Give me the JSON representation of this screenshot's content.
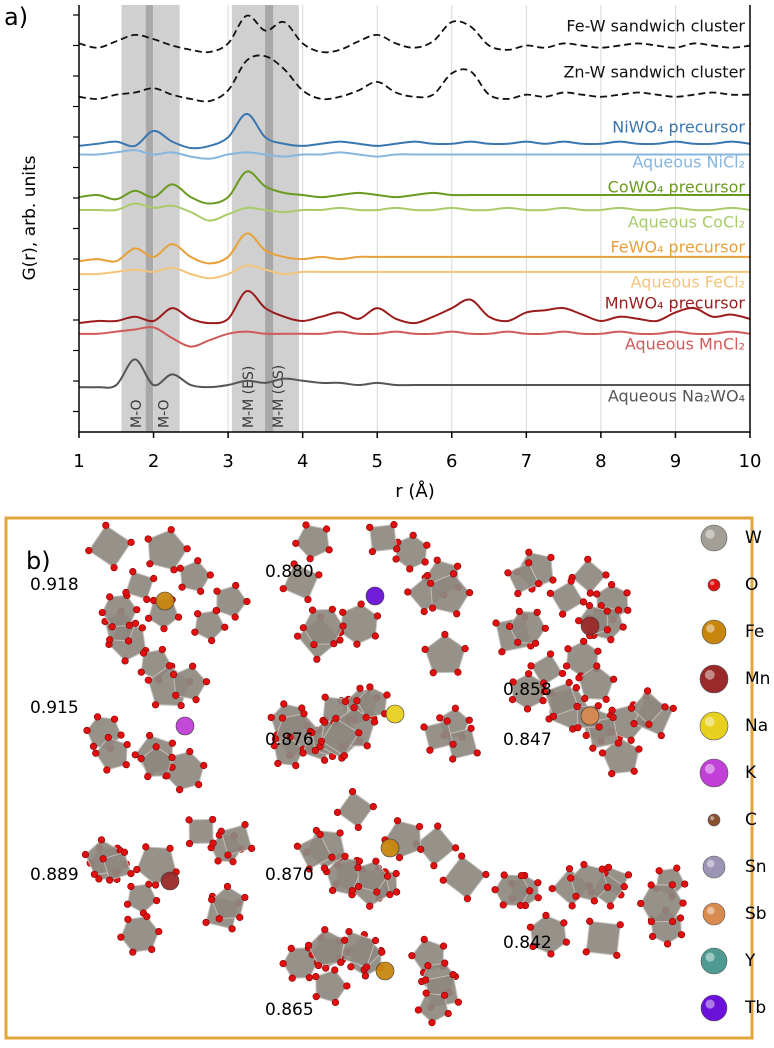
{
  "chart_data": {
    "type": "line",
    "panel_label": "a)",
    "xlabel": "r (Å)",
    "ylabel": "G(r), arb. units",
    "xlim": [
      1,
      10
    ],
    "xticks": [
      1,
      2,
      3,
      4,
      5,
      6,
      7,
      8,
      9,
      10
    ],
    "ylim": [
      0,
      100
    ],
    "grid": true,
    "regions": [
      [
        1.57,
        2.35
      ],
      [
        3.05,
        3.95
      ]
    ],
    "region_lines": [
      1.95,
      3.55
    ],
    "annotations": [
      {
        "text": "M-O",
        "x": 1.78
      },
      {
        "text": "M-O",
        "x": 2.15
      },
      {
        "text": "M-M (ES)",
        "x": 3.28
      },
      {
        "text": "M-M (CS)",
        "x": 3.68
      }
    ],
    "x": [
      1,
      1.25,
      1.5,
      1.75,
      2,
      2.25,
      2.5,
      2.75,
      3,
      3.25,
      3.5,
      3.75,
      4,
      4.25,
      4.5,
      4.75,
      5,
      5.25,
      5.5,
      5.75,
      6,
      6.25,
      6.5,
      6.75,
      7,
      7.25,
      7.5,
      7.75,
      8,
      8.25,
      8.5,
      8.75,
      9,
      9.25,
      9.5,
      9.75,
      10
    ],
    "series": [
      {
        "name": "Fe-W sandwich cluster",
        "color": "#111111",
        "dashed": true,
        "values": [
          91,
          90,
          91.5,
          93,
          92,
          90.5,
          89.5,
          89,
          91,
          97.5,
          94,
          96,
          91,
          89,
          89.5,
          91.5,
          93,
          91,
          90,
          91.5,
          96,
          95,
          90.5,
          89.5,
          90.5,
          90,
          91,
          90.5,
          90,
          90.5,
          91,
          90.5,
          90,
          91,
          90.5,
          90,
          90.5
        ]
      },
      {
        "name": "Zn-W sandwich cluster",
        "color": "#111111",
        "dashed": true,
        "values": [
          78.5,
          78,
          79,
          79.5,
          80.5,
          79,
          78,
          77.5,
          80,
          87,
          88,
          85,
          80,
          78,
          78.5,
          80,
          82,
          79.5,
          78.5,
          79,
          84,
          84.5,
          79,
          78,
          79,
          78.5,
          79.5,
          79,
          78.5,
          79,
          79.5,
          79,
          78.5,
          79,
          79.5,
          79,
          79
        ]
      },
      {
        "name": "NiWO₄ precursor",
        "color": "#3a76b0",
        "dashed": false,
        "values": [
          67,
          67.5,
          68,
          67,
          70.5,
          68,
          66.5,
          67,
          69,
          74.5,
          69,
          67.5,
          67,
          67.5,
          68,
          67.5,
          67,
          67.5,
          68,
          67.5,
          67.5,
          68,
          67.5,
          67.5,
          68,
          67.5,
          68,
          67.5,
          67.5,
          68,
          67.5,
          67.5,
          68,
          67.5,
          67.5,
          68,
          67.5
        ]
      },
      {
        "name": "Aqueous NiCl₂",
        "color": "#86b5de",
        "dashed": false,
        "values": [
          65,
          65,
          65.5,
          66,
          65,
          65.5,
          64.5,
          64,
          65,
          65.5,
          65,
          64.5,
          65,
          65,
          65.5,
          65,
          64.5,
          65,
          65,
          65,
          65,
          65,
          65,
          65,
          65,
          65,
          65,
          65,
          65,
          65,
          65,
          65,
          65,
          65,
          65,
          65,
          65
        ]
      },
      {
        "name": "CoWO₄ precursor",
        "color": "#6a9a1f",
        "dashed": false,
        "values": [
          55,
          55.5,
          54.5,
          56.5,
          55,
          58,
          55,
          53.5,
          55,
          61,
          57.5,
          56,
          55.5,
          55,
          55.5,
          56,
          55.5,
          55,
          55.5,
          56,
          55.5,
          55.5,
          55.5,
          55.5,
          55.5,
          55.5,
          55.5,
          55.5,
          55.5,
          55.5,
          55.5,
          55.5,
          55.5,
          55.5,
          55.5,
          55.5,
          55.5
        ]
      },
      {
        "name": "Aqueous CoCl₂",
        "color": "#a9cc6a",
        "dashed": false,
        "values": [
          52,
          52,
          52,
          53.5,
          52.5,
          53,
          51.5,
          49.5,
          51,
          52.5,
          52,
          51.5,
          52,
          52,
          52.5,
          52,
          52,
          52.5,
          52,
          52,
          52.5,
          52,
          52,
          52.5,
          52,
          52,
          52.5,
          52,
          52,
          52.5,
          52,
          52,
          52.5,
          52,
          52,
          52.5,
          52
        ]
      },
      {
        "name": "FeWO₄ precursor",
        "color": "#e8a13a",
        "dashed": false,
        "values": [
          40,
          40.5,
          40,
          43,
          41,
          44,
          41,
          39.5,
          41,
          46.5,
          42.5,
          41,
          40.5,
          41,
          40.5,
          41,
          41,
          41,
          41,
          41,
          41,
          41,
          41,
          41,
          41,
          41,
          41,
          41,
          41,
          41,
          41,
          41,
          41,
          41,
          41,
          41,
          41
        ]
      },
      {
        "name": "Aqueous FeCl₂",
        "color": "#f2c57a",
        "dashed": false,
        "values": [
          37,
          37,
          37.5,
          38,
          37.5,
          38.5,
          37,
          36,
          37,
          39,
          38,
          37,
          37.5,
          37.5,
          37.5,
          37.5,
          37.5,
          37.5,
          37.5,
          37.5,
          37.5,
          37.5,
          37.5,
          37.5,
          37.5,
          37.5,
          37.5,
          37.5,
          37.5,
          37.5,
          37.5,
          37.5,
          37.5,
          37.5,
          37.5,
          37.5,
          37.5
        ]
      },
      {
        "name": "MnWO₄ precursor",
        "color": "#9b1c1c",
        "dashed": false,
        "values": [
          25.5,
          26,
          26,
          27,
          26,
          29,
          26.5,
          25.5,
          26.5,
          33,
          29,
          27,
          26,
          27,
          28,
          26.5,
          29,
          26.5,
          25.5,
          27,
          29,
          31,
          27,
          26,
          28,
          28.5,
          29,
          27.5,
          26,
          27,
          26.5,
          26,
          28,
          29,
          27,
          27.5,
          26.5
        ]
      },
      {
        "name": "Aqueous MnCl₂",
        "color": "#d05a5a",
        "dashed": false,
        "values": [
          23,
          23,
          23.5,
          24,
          24.5,
          22,
          20,
          21.5,
          23,
          23.5,
          23,
          23,
          23,
          23,
          23.5,
          23,
          23,
          23.5,
          23,
          23,
          23.5,
          23,
          23,
          23.5,
          23,
          23,
          23.5,
          23,
          23,
          23.5,
          23,
          23,
          23.5,
          23,
          23,
          23.5,
          23
        ]
      },
      {
        "name": "Aqueous Na₂WO₄",
        "color": "#555555",
        "dashed": false,
        "values": [
          10.5,
          10.5,
          11,
          17,
          11,
          13.5,
          11,
          10.5,
          11,
          12,
          11.5,
          12.5,
          12,
          11.5,
          11.5,
          11,
          11.5,
          11,
          11,
          11,
          11,
          11,
          11,
          11,
          11,
          11,
          11,
          11,
          11,
          11,
          11,
          11,
          11,
          11,
          11,
          11,
          11
        ]
      }
    ]
  },
  "panel_b": {
    "label": "b)",
    "structures": [
      {
        "score": "0.918"
      },
      {
        "score": "0.880"
      },
      {
        "score": "0.858"
      },
      {
        "score": "0.915"
      },
      {
        "score": "0.876"
      },
      {
        "score": "0.847"
      },
      {
        "score": "0.889"
      },
      {
        "score": "0.870"
      },
      {
        "score": "0.842"
      },
      {
        "score": "0.865"
      }
    ],
    "legend": [
      {
        "element": "W",
        "color": "#a39e96"
      },
      {
        "element": "O",
        "color": "#e01010"
      },
      {
        "element": "Fe",
        "color": "#c8860e"
      },
      {
        "element": "Mn",
        "color": "#9a2a2a"
      },
      {
        "element": "Na",
        "color": "#e8d020"
      },
      {
        "element": "K",
        "color": "#c040d8"
      },
      {
        "element": "C",
        "color": "#8a5030"
      },
      {
        "element": "Sn",
        "color": "#9c94b4"
      },
      {
        "element": "Sb",
        "color": "#d88a50"
      },
      {
        "element": "Y",
        "color": "#4e9a92"
      },
      {
        "element": "Tb",
        "color": "#6a10d8"
      }
    ]
  }
}
